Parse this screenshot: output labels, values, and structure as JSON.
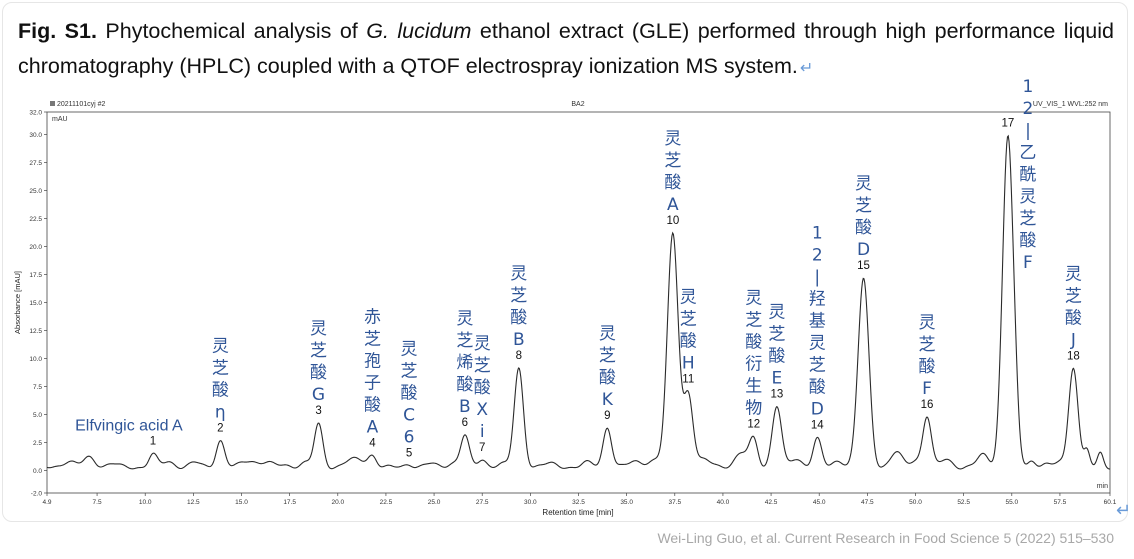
{
  "caption": {
    "label": "Fig. S1.",
    "text_before": " Phytochemical analysis of ",
    "species": "G. lucidum",
    "text_after": " ethanol extract (GLE) performed through high performance liquid chromatography (HPLC) coupled with a QTOF electrospray ionization MS system.",
    "return_mark": "↵"
  },
  "citation": "Wei-Ling Guo, et al. Current Research in Food Science 5 (2022) 515–530",
  "side_mark": "↵",
  "colors": {
    "trace": "#2b2b2b",
    "annotation": "#2f5597",
    "axis": "#444444"
  },
  "chart_data": {
    "type": "line",
    "header_left": "20211101cyj #2",
    "header_center": "BA2",
    "header_right": "UV_VIS_1 WVL:252 nm",
    "y_unit": "mAU",
    "ylabel": "Absorbance [mAU]",
    "xlabel": "Retention time [min]",
    "x_unit": "min",
    "xlim": [
      4.9,
      60.1
    ],
    "ylim": [
      -2.0,
      32.0
    ],
    "x_ticks": [
      "4.9",
      "7.5",
      "10.0",
      "12.5",
      "15.0",
      "17.5",
      "20.0",
      "22.5",
      "25.0",
      "27.5",
      "30.0",
      "32.5",
      "35.0",
      "37.5",
      "40.0",
      "42.5",
      "45.0",
      "47.5",
      "50.0",
      "52.5",
      "55.0",
      "57.5",
      "60.1"
    ],
    "y_ticks": [
      "-2.0",
      "0.0",
      "2.5",
      "5.0",
      "7.5",
      "10.0",
      "12.5",
      "15.0",
      "17.5",
      "20.0",
      "22.5",
      "25.0",
      "27.5",
      "30.0",
      "32.0"
    ],
    "baseline": 0.3,
    "peaks": [
      {
        "id": "1",
        "rt": 10.4,
        "height": 1.1,
        "name": "Elfvingic acid A"
      },
      {
        "id": "2",
        "rt": 13.9,
        "height": 2.4,
        "name": "灵芝酸η"
      },
      {
        "id": "3",
        "rt": 19.0,
        "height": 3.8,
        "name": "灵芝酸G"
      },
      {
        "id": "4",
        "rt": 21.8,
        "height": 1.0,
        "name": "赤芝孢子酸A"
      },
      {
        "id": "5",
        "rt": 23.7,
        "height": 0.3,
        "name": "灵芝酸C6"
      },
      {
        "id": "6",
        "rt": 26.6,
        "height": 2.8,
        "name": "灵芝烯酸B"
      },
      {
        "id": "7",
        "rt": 27.5,
        "height": 0.7,
        "name": "灵芝酸Xi"
      },
      {
        "id": "8",
        "rt": 29.4,
        "height": 8.8,
        "name": "灵芝酸B"
      },
      {
        "id": "9",
        "rt": 34.0,
        "height": 3.6,
        "name": "灵芝酸K"
      },
      {
        "id": "10",
        "rt": 37.4,
        "height": 20.8,
        "name": "灵芝酸A"
      },
      {
        "id": "11",
        "rt": 38.2,
        "height": 6.3,
        "name": "灵芝酸H"
      },
      {
        "id": "12",
        "rt": 41.6,
        "height": 2.4,
        "name": "灵芝酸衍生物"
      },
      {
        "id": "13",
        "rt": 42.8,
        "height": 5.4,
        "name": "灵芝酸E"
      },
      {
        "id": "14",
        "rt": 44.9,
        "height": 2.5,
        "name": "12-羟基灵芝酸D"
      },
      {
        "id": "15",
        "rt": 47.3,
        "height": 16.8,
        "name": "灵芝酸D"
      },
      {
        "id": "16",
        "rt": 50.6,
        "height": 4.5,
        "name": "灵芝酸F"
      },
      {
        "id": "17",
        "rt": 54.8,
        "height": 29.6,
        "name": "12-乙酰灵芝酸F"
      },
      {
        "id": "18",
        "rt": 58.2,
        "height": 9.0,
        "name": "灵芝酸J"
      }
    ],
    "labels": [
      {
        "text": "Elfvingic acid A",
        "vertical": false
      },
      {
        "text": "灵芝酸η",
        "vertical": true
      },
      {
        "text": "灵芝酸G",
        "vertical": true
      },
      {
        "text": "赤芝孢子酸A",
        "vertical": true
      },
      {
        "text": "灵芝酸C6",
        "vertical": true
      },
      {
        "text": "灵芝烯酸B",
        "vertical": true
      },
      {
        "text": "灵芝酸Xi",
        "vertical": true
      },
      {
        "text": "灵芝酸B",
        "vertical": true
      },
      {
        "text": "灵芝酸K",
        "vertical": true
      },
      {
        "text": "灵芝酸A",
        "vertical": true
      },
      {
        "text": "灵芝酸H",
        "vertical": true
      },
      {
        "text": "灵芝酸衍生物",
        "vertical": true
      },
      {
        "text": "灵芝酸E",
        "vertical": true
      },
      {
        "text": "12-羟基灵芝酸D",
        "vertical": true
      },
      {
        "text": "灵芝酸D",
        "vertical": true
      },
      {
        "text": "灵芝酸F",
        "vertical": true
      },
      {
        "text": "12-乙酰灵芝酸F",
        "vertical": true
      },
      {
        "text": "灵芝酸J",
        "vertical": true
      }
    ]
  }
}
